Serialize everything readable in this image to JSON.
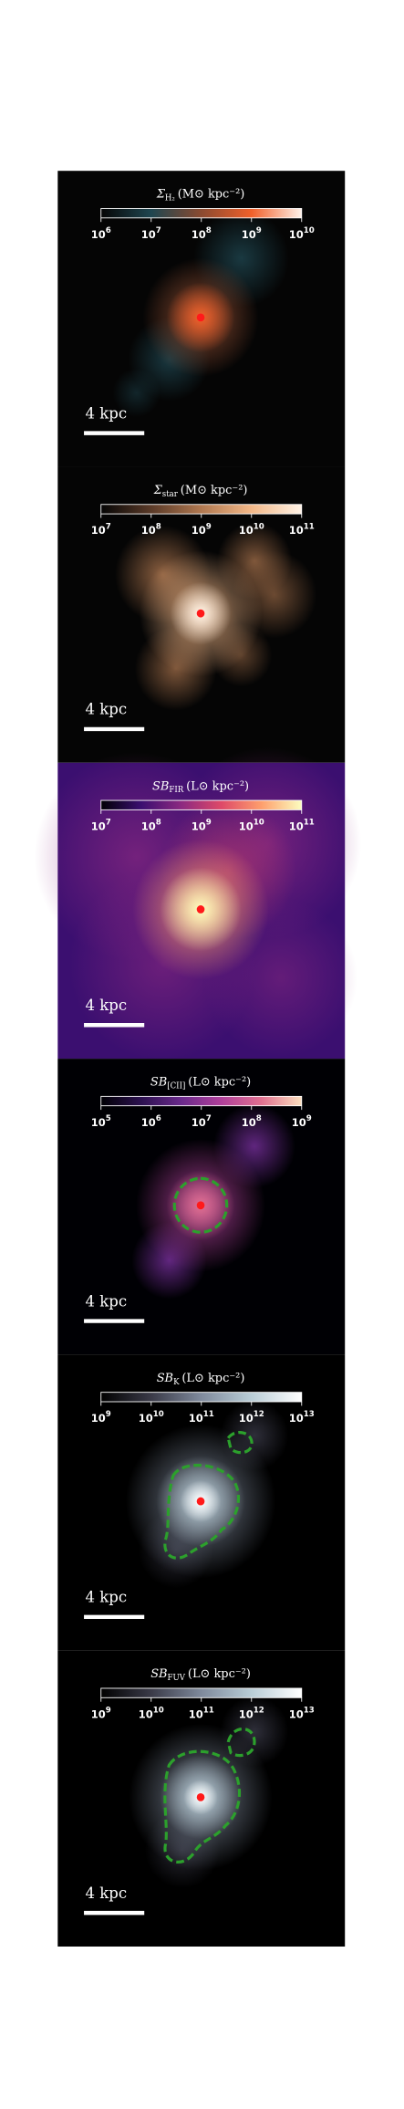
{
  "panels": [
    {
      "title": {
        "symbol": "Σ",
        "sub": "H₂",
        "unit": "(M⊙ kpc⁻²)"
      },
      "tick_base": "10",
      "ticks": [
        "6",
        "7",
        "8",
        "9",
        "10"
      ],
      "scale_label": "4 kpc",
      "colormap": [
        "#050505",
        "#1f4650",
        "#8a4a30",
        "#f0602a",
        "#fff2ea"
      ]
    },
    {
      "title": {
        "symbol": "Σ",
        "sub": "star",
        "unit": "(M⊙ kpc⁻²)"
      },
      "tick_base": "10",
      "ticks": [
        "7",
        "8",
        "9",
        "10",
        "11"
      ],
      "scale_label": "4 kpc",
      "colormap": [
        "#050505",
        "#5a3a28",
        "#b07850",
        "#f3b888",
        "#fff3e6"
      ]
    },
    {
      "title": {
        "symbol": "SB",
        "sub": "FIR",
        "unit": "(L⊙ kpc⁻²)"
      },
      "tick_base": "10",
      "ticks": [
        "7",
        "8",
        "9",
        "10",
        "11"
      ],
      "scale_label": "4 kpc",
      "colormap": [
        "#000004",
        "#3b0f70",
        "#8c2981",
        "#de4968",
        "#fe9f6d",
        "#fcfdbf"
      ]
    },
    {
      "title": {
        "symbol": "SB",
        "sub": "[CII]",
        "unit": "(L⊙ kpc⁻²)"
      },
      "tick_base": "10",
      "ticks": [
        "5",
        "6",
        "7",
        "8",
        "9"
      ],
      "scale_label": "4 kpc",
      "colormap": [
        "#000004",
        "#2c1150",
        "#6a2a8c",
        "#b0409a",
        "#e07090",
        "#fce0c0"
      ]
    },
    {
      "title": {
        "symbol": "SB",
        "sub": "K",
        "unit": "(L⊙ kpc⁻²)"
      },
      "tick_base": "10",
      "ticks": [
        "9",
        "10",
        "11",
        "12",
        "13"
      ],
      "scale_label": "4 kpc",
      "colormap": [
        "#000000",
        "#3a3a48",
        "#7f8a9c",
        "#b9cdd6",
        "#ffffff"
      ]
    },
    {
      "title": {
        "symbol": "SB",
        "sub": "FUV",
        "unit": "(L⊙ kpc⁻²)"
      },
      "tick_base": "10",
      "ticks": [
        "9",
        "10",
        "11",
        "12",
        "13"
      ],
      "scale_label": "4 kpc",
      "colormap": [
        "#000000",
        "#3a3a48",
        "#7f8a9c",
        "#b9cdd6",
        "#ffffff"
      ]
    }
  ]
}
